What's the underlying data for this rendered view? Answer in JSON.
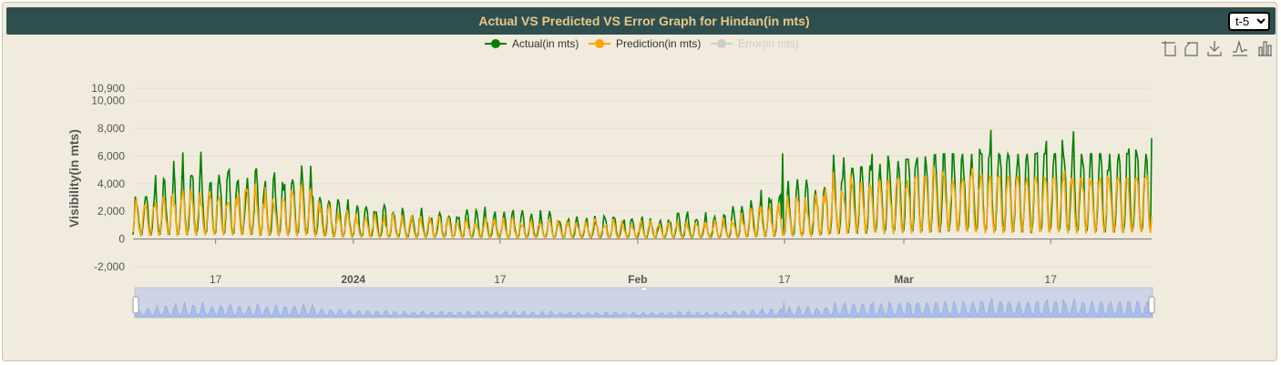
{
  "header": {
    "title": "Actual VS Predicted VS Error Graph for Hindan(in mts)",
    "select_value": "t-5",
    "select_options": [
      "t-5"
    ]
  },
  "toolbar": {
    "icons": [
      "zoom-icon",
      "zoom-reset-icon",
      "download-icon",
      "line-chart-icon",
      "bar-chart-icon"
    ]
  },
  "chart_data": {
    "type": "line",
    "ylabel": "Visibility(in mts)",
    "ylim": [
      -2000,
      10900
    ],
    "yticks": [
      {
        "value": -2000,
        "label": "-2,000"
      },
      {
        "value": 0,
        "label": "0"
      },
      {
        "value": 2000,
        "label": "2,000"
      },
      {
        "value": 4000,
        "label": "4,000"
      },
      {
        "value": 6000,
        "label": "6,000"
      },
      {
        "value": 8000,
        "label": "8,000"
      },
      {
        "value": 10000,
        "label": "10,000"
      },
      {
        "value": 10900,
        "label": "10,900"
      }
    ],
    "x_range": [
      "2023-12-08",
      "2024-03-28"
    ],
    "xticks": [
      {
        "date": "2023-12-17",
        "label": "17",
        "bold": false
      },
      {
        "date": "2024-01-01",
        "label": "2024",
        "bold": true
      },
      {
        "date": "2024-01-17",
        "label": "17",
        "bold": false
      },
      {
        "date": "2024-02-01",
        "label": "Feb",
        "bold": true
      },
      {
        "date": "2024-02-17",
        "label": "17",
        "bold": false
      },
      {
        "date": "2024-03-01",
        "label": "Mar",
        "bold": true
      },
      {
        "date": "2024-03-17",
        "label": "17",
        "bold": false
      }
    ],
    "legend_position": "top-center",
    "series": [
      {
        "name": "Actual(in mts)",
        "color": "#008000",
        "hidden": false,
        "profile": [
          [
            0,
            2500
          ],
          [
            6,
            3800
          ],
          [
            12,
            3600
          ],
          [
            17,
            3000
          ],
          [
            19,
            3800
          ],
          [
            21,
            2400
          ],
          [
            24,
            1800
          ],
          [
            30,
            1500
          ],
          [
            38,
            1400
          ],
          [
            50,
            1100
          ],
          [
            56,
            1100
          ],
          [
            60,
            1200
          ],
          [
            64,
            1100
          ],
          [
            70,
            2600
          ],
          [
            74,
            2600
          ],
          [
            78,
            4600
          ],
          [
            88,
            5600
          ],
          [
            100,
            5600
          ],
          [
            112,
            5600
          ]
        ]
      },
      {
        "name": "Prediction(in mts)",
        "color": "#ffa500",
        "hidden": false,
        "profile": [
          [
            0,
            1800
          ],
          [
            6,
            2800
          ],
          [
            12,
            2600
          ],
          [
            17,
            2300
          ],
          [
            19,
            2600
          ],
          [
            21,
            1600
          ],
          [
            24,
            1300
          ],
          [
            30,
            1100
          ],
          [
            38,
            1000
          ],
          [
            50,
            900
          ],
          [
            56,
            900
          ],
          [
            60,
            900
          ],
          [
            64,
            900
          ],
          [
            70,
            1900
          ],
          [
            74,
            2200
          ],
          [
            78,
            3600
          ],
          [
            88,
            4200
          ],
          [
            100,
            4000
          ],
          [
            112,
            4000
          ]
        ]
      },
      {
        "name": "Error(in mts)",
        "color": "#cccccc",
        "hidden": true
      }
    ],
    "datazoom": {
      "start": 0,
      "end": 100
    }
  }
}
